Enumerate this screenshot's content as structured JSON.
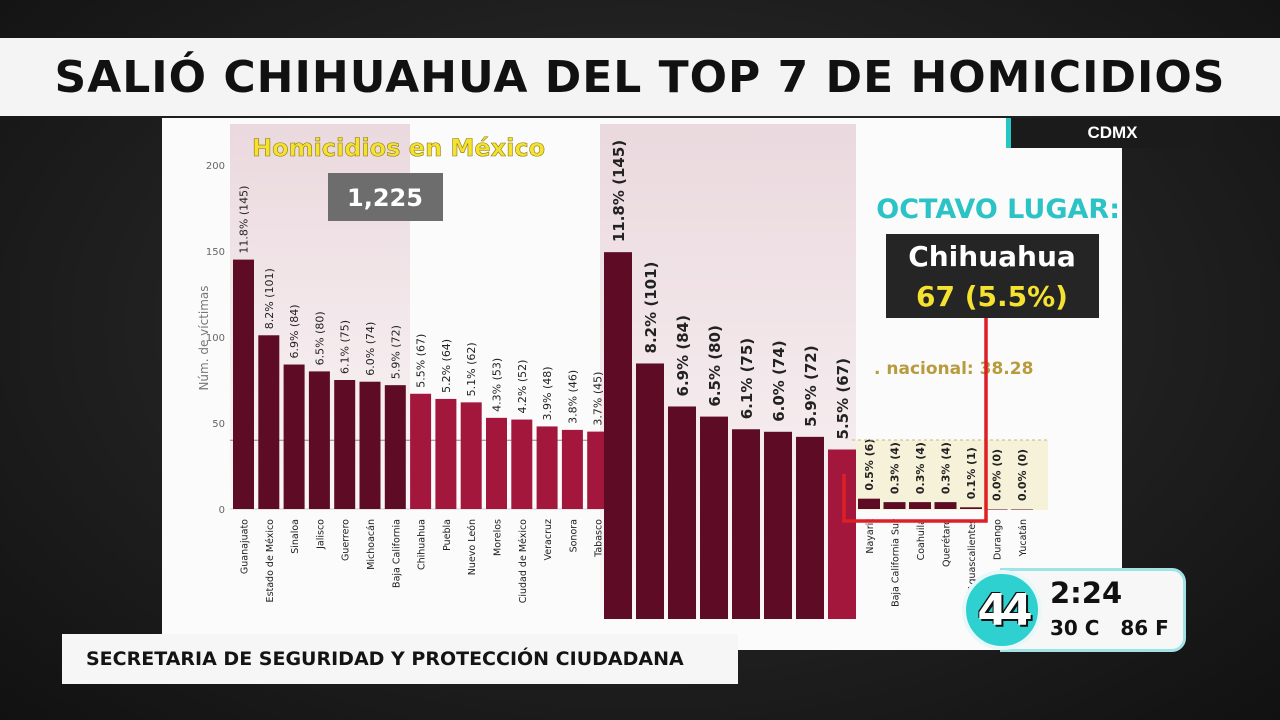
{
  "headline": "SALIÓ CHIHUAHUA DEL TOP 7 DE HOMICIDIOS",
  "region_tag": "CDMX",
  "lower_third": "SECRETARIA DE SEGURIDAD Y PROTECCIÓN CIUDADANA",
  "clock": {
    "time": "2:24",
    "weather": "30 C   86 F",
    "logo": "44"
  },
  "colors": {
    "bar_dark": "#5e0c25",
    "bar_light": "#a3173d",
    "title_yellow": "#f5e230",
    "cyan": "#2cc3c6",
    "callout_red": "#dd1f26"
  },
  "chart_data": [
    {
      "type": "bar",
      "title": "Homicidios en México",
      "total_label": "1,225",
      "ylabel": "Núm. de víctimas",
      "ylim": [
        0,
        200
      ],
      "yticks": [
        "0",
        "50",
        "100",
        "150",
        "200"
      ],
      "categories": [
        "Guanajuato",
        "Estado de México",
        "Sinaloa",
        "Jalisco",
        "Guerrero",
        "Michoacán",
        "Baja California",
        "Chihuahua",
        "Puebla",
        "Nuevo León",
        "Morelos",
        "Ciudad de México",
        "Veracruz",
        "Sonora",
        "Tabasco"
      ],
      "values": [
        145,
        101,
        84,
        80,
        75,
        74,
        72,
        67,
        64,
        62,
        53,
        52,
        48,
        46,
        45
      ],
      "data_labels": [
        "11.8% (145)",
        "8.2% (101)",
        "6.9% (84)",
        "6.5% (80)",
        "6.1% (75)",
        "6.0% (74)",
        "5.9% (72)",
        "5.5% (67)",
        "5.2% (64)",
        "5.1% (62)",
        "4.3% (53)",
        "4.2% (52)",
        "3.9% (48)",
        "3.8% (46)",
        "3.7% (45)"
      ]
    },
    {
      "type": "bar",
      "ylim": [
        0,
        200
      ],
      "categories": [
        "",
        "",
        "",
        "",
        "",
        "",
        "",
        ""
      ],
      "values": [
        145,
        101,
        84,
        80,
        75,
        74,
        72,
        67
      ],
      "data_labels": [
        "11.8% (145)",
        "8.2% (101)",
        "6.9% (84)",
        "6.5% (80)",
        "6.1% (75)",
        "6.0% (74)",
        "5.9% (72)",
        "5.5% (67)"
      ]
    },
    {
      "type": "bar",
      "categories": [
        "Nayarit",
        "Baja California Sur",
        "Coahuila",
        "Querétaro",
        "Aguascalientes",
        "Durango",
        "Yucatán"
      ],
      "values": [
        6,
        4,
        4,
        4,
        1,
        0,
        0
      ],
      "data_labels": [
        "0.5% (6)",
        "0.3% (4)",
        "0.3% (4)",
        "0.3% (4)",
        "0.1% (1)",
        "0.0% (0)",
        "0.0% (0)"
      ]
    }
  ],
  "annotations": {
    "rank_label": "OCTAVO LUGAR:",
    "state": "Chihuahua",
    "state_value": "67 (5.5%)",
    "national_label": ". nacional: 38.28"
  }
}
